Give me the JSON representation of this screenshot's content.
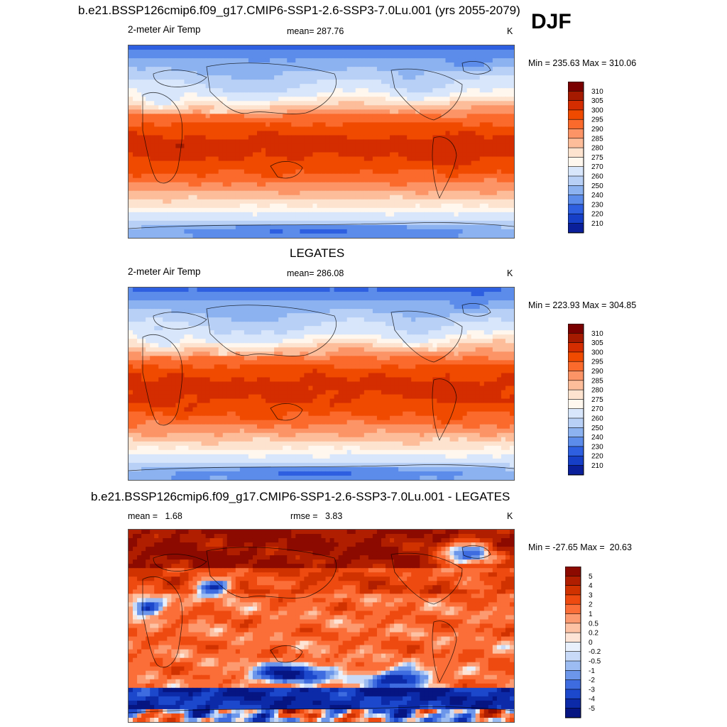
{
  "header": {
    "main_title": "b.e21.BSSP126cmip6.f09_g17.CMIP6-SSP1-2.6-SSP3-7.0Lu.001 (yrs 2055-2079)",
    "season": "DJF"
  },
  "chart_data": [
    {
      "type": "heatmap",
      "title": "b.e21.BSSP126cmip6.f09_g17.CMIP6-SSP1-2.6-SSP3-7.0Lu.001 (yrs 2055-2079)",
      "left_label": "2-meter Air Temp",
      "center_label": "mean= 287.76",
      "units": "K",
      "stats": "Min = 235.63 Max = 310.06",
      "min": 235.63,
      "max": 310.06,
      "mean": 287.76,
      "levels": [
        "310",
        "305",
        "300",
        "295",
        "290",
        "285",
        "280",
        "275",
        "270",
        "260",
        "250",
        "240",
        "230",
        "220",
        "210"
      ],
      "colors": [
        "#7a0000",
        "#a51a00",
        "#d42d00",
        "#f04a00",
        "#fb6a2c",
        "#fc9466",
        "#fdbd9a",
        "#fde3cf",
        "#fff7ee",
        "#d8e6fb",
        "#b8d0f6",
        "#8cb2f0",
        "#5c8cea",
        "#2e5fe0",
        "#163fc7",
        "#0a1f9a"
      ]
    },
    {
      "type": "heatmap",
      "title": "LEGATES",
      "left_label": "2-meter Air Temp",
      "center_label": "mean= 286.08",
      "units": "K",
      "stats": "Min = 223.93 Max = 304.85",
      "min": 223.93,
      "max": 304.85,
      "mean": 286.08,
      "levels": [
        "310",
        "305",
        "300",
        "295",
        "290",
        "285",
        "280",
        "275",
        "270",
        "260",
        "250",
        "240",
        "230",
        "220",
        "210"
      ],
      "colors": [
        "#7a0000",
        "#a51a00",
        "#d42d00",
        "#f04a00",
        "#fb6a2c",
        "#fc9466",
        "#fdbd9a",
        "#fde3cf",
        "#fff7ee",
        "#d8e6fb",
        "#b8d0f6",
        "#8cb2f0",
        "#5c8cea",
        "#2e5fe0",
        "#163fc7",
        "#0a1f9a"
      ]
    },
    {
      "type": "heatmap",
      "title": "b.e21.BSSP126cmip6.f09_g17.CMIP6-SSP1-2.6-SSP3-7.0Lu.001 - LEGATES",
      "left_label": "mean =   1.68",
      "center_label": "rmse =   3.83",
      "units": "K",
      "stats": "Min = -27.65 Max =  20.63",
      "min": -27.65,
      "max": 20.63,
      "mean": 1.68,
      "rmse": 3.83,
      "levels": [
        "5",
        "4",
        "3",
        "2",
        "1",
        "0.5",
        "0.2",
        "0",
        "-0.2",
        "-0.5",
        "-1",
        "-2",
        "-3",
        "-4",
        "-5"
      ],
      "colors": [
        "#8c0a00",
        "#b01e00",
        "#d03200",
        "#ee4a10",
        "#fb6e38",
        "#fc9a70",
        "#fdc2a4",
        "#fde4d6",
        "#e8f0fc",
        "#c8daf8",
        "#9cbcf2",
        "#6c96ea",
        "#3e6ce0",
        "#1c48cc",
        "#0c2aa8",
        "#061582"
      ]
    }
  ]
}
